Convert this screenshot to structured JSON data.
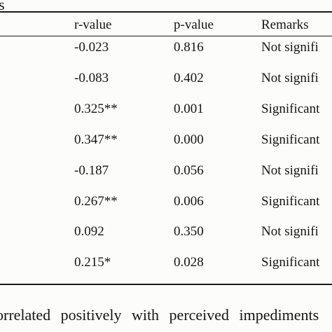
{
  "table": {
    "title_fragment": "s",
    "headers": [
      "r-value",
      "p-value",
      "Remarks"
    ],
    "rows": [
      {
        "r": "-0.023",
        "p": "0.816",
        "remark": "Not signifi"
      },
      {
        "r": "-0.083",
        "p": "0.402",
        "remark": "Not signifi"
      },
      {
        "r": "0.325**",
        "p": "0.001",
        "remark": "Significant"
      },
      {
        "r": "0.347**",
        "p": "0.000",
        "remark": "Significant"
      },
      {
        "r": "-0.187",
        "p": "0.056",
        "remark": "Not signifi"
      },
      {
        "r": "0.267**",
        "p": "0.006",
        "remark": "Significant"
      },
      {
        "r": "0.092",
        "p": "0.350",
        "remark": "Not signifi"
      },
      {
        "r": "0.215*",
        "p": "0.028",
        "remark": "Significant"
      }
    ]
  },
  "footer_text": "orrelated positively with perceived impediments"
}
